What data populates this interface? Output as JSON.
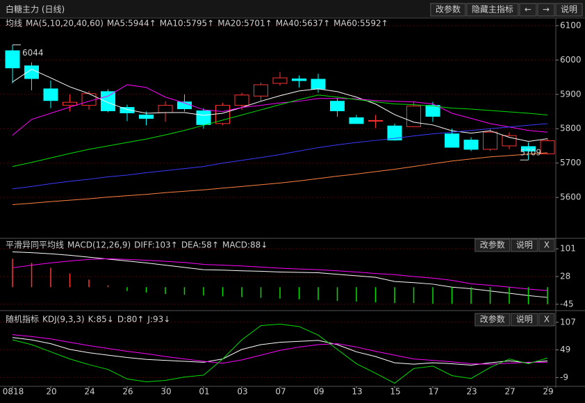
{
  "header": {
    "title": "白糖主力 (日线)",
    "buttons": [
      "改参数",
      "隐藏主指标",
      "←",
      "→",
      "说明"
    ]
  },
  "chart_data": [
    {
      "type": "candlestick",
      "label": "均线",
      "indicator": "MA(5,10,20,40,60)",
      "categories": [
        "0818",
        null,
        "20",
        null,
        "24",
        null,
        "26",
        null,
        "30",
        null,
        "01",
        null,
        "03",
        null,
        "07",
        null,
        "09",
        null,
        "13",
        null,
        "15",
        null,
        "17",
        null,
        "23",
        null,
        "27",
        null,
        "29"
      ],
      "open": [
        6027,
        5983,
        5916,
        5868,
        5868,
        5908,
        5862,
        5840,
        5847,
        5878,
        5852,
        5815,
        5868,
        5895,
        5932,
        5945,
        5944,
        5880,
        5832,
        5822,
        5808,
        5806,
        5868,
        5785,
        5767,
        5740,
        5750,
        5748,
        5727
      ],
      "high": [
        6044,
        5993,
        5940,
        5900,
        5910,
        5915,
        5870,
        5850,
        5880,
        5900,
        5860,
        5875,
        5905,
        5935,
        5965,
        5955,
        5960,
        5890,
        5840,
        5840,
        5815,
        5880,
        5878,
        5800,
        5775,
        5800,
        5790,
        5760,
        5772
      ],
      "low": [
        5932,
        5912,
        5860,
        5850,
        5855,
        5848,
        5822,
        5810,
        5820,
        5850,
        5800,
        5810,
        5855,
        5880,
        5925,
        5920,
        5905,
        5835,
        5815,
        5802,
        5765,
        5805,
        5820,
        5745,
        5735,
        5735,
        5740,
        5709,
        5725
      ],
      "close": [
        5977,
        5946,
        5882,
        5877,
        5902,
        5852,
        5846,
        5830,
        5868,
        5858,
        5812,
        5868,
        5898,
        5928,
        5948,
        5940,
        5916,
        5852,
        5815,
        5824,
        5767,
        5866,
        5836,
        5746,
        5740,
        5790,
        5780,
        5735,
        5765
      ],
      "up_color": "#ff3232",
      "down_color": "#00ffff",
      "series": [
        {
          "name": "MA5:5944↑",
          "color": "#ffffff",
          "values": [
            5936,
            5973,
            5948,
            5922,
            5902,
            5876,
            5856,
            5845,
            5847,
            5847,
            5839,
            5845,
            5862,
            5880,
            5896,
            5910,
            5916,
            5908,
            5892,
            5872,
            5841,
            5819,
            5811,
            5794,
            5787,
            5794,
            5775,
            5763,
            5771
          ]
        },
        {
          "name": "MA10:5795↑",
          "color": "#ff00ff",
          "values": [
            5781,
            5827,
            5845,
            5863,
            5880,
            5895,
            5928,
            5920,
            5892,
            5875,
            5855,
            5850,
            5862,
            5868,
            5875,
            5880,
            5888,
            5888,
            5887,
            5882,
            5880,
            5878,
            5872,
            5845,
            5830,
            5815,
            5805,
            5795,
            5790
          ]
        },
        {
          "name": "MA20:5701↑",
          "color": "#00e000",
          "values": [
            5690,
            5702,
            5715,
            5728,
            5740,
            5750,
            5760,
            5770,
            5782,
            5795,
            5810,
            5825,
            5840,
            5855,
            5870,
            5885,
            5898,
            5892,
            5885,
            5878,
            5872,
            5870,
            5866,
            5860,
            5857,
            5853,
            5849,
            5845,
            5840
          ]
        },
        {
          "name": "MA40:5637↑",
          "color": "#3a3aff",
          "values": [
            5625,
            5632,
            5640,
            5647,
            5653,
            5660,
            5665,
            5672,
            5678,
            5684,
            5690,
            5700,
            5708,
            5716,
            5725,
            5735,
            5745,
            5753,
            5760,
            5766,
            5772,
            5779,
            5785,
            5790,
            5795,
            5800,
            5805,
            5810,
            5815
          ]
        },
        {
          "name": "MA60:5592↑",
          "color": "#ff8040",
          "values": [
            5579,
            5583,
            5588,
            5592,
            5596,
            5601,
            5605,
            5609,
            5614,
            5618,
            5622,
            5627,
            5632,
            5637,
            5642,
            5648,
            5655,
            5662,
            5668,
            5675,
            5682,
            5690,
            5698,
            5706,
            5712,
            5718,
            5722,
            5726,
            5730
          ]
        }
      ],
      "ylim": [
        5483,
        6118
      ],
      "yticks": [
        5600,
        5700,
        5800,
        5900,
        6000,
        6100
      ],
      "grid": true
    },
    {
      "type": "combo",
      "label": "平滑异同平均线",
      "indicator": "MACD(12,26,9)",
      "buttons": [
        "改参数",
        "说明",
        "X"
      ],
      "series": [
        {
          "name": "DIFF:103↑",
          "color": "#ffffff",
          "values": [
            93,
            91,
            88,
            84,
            79,
            74,
            69,
            64,
            58,
            52,
            46,
            45,
            43,
            42,
            40,
            39,
            38,
            34,
            30,
            26,
            15,
            12,
            8,
            0,
            -4,
            -10,
            -16,
            -22,
            -27
          ]
        },
        {
          "name": "DEA:58↑",
          "color": "#ff00ff",
          "values": [
            51,
            58,
            64,
            69,
            73,
            75,
            73,
            71,
            68,
            65,
            60,
            58,
            56,
            53,
            50,
            48,
            46,
            43,
            40,
            36,
            33,
            28,
            24,
            18,
            9,
            5,
            0,
            -5,
            -9
          ]
        },
        {
          "name": "MACD:88↓",
          "color": "#00e000",
          "up_color": "#ff3232",
          "style": "bar",
          "values": [
            75,
            64,
            51,
            36,
            20,
            5,
            -10,
            -14,
            -18,
            -20,
            -22,
            -24,
            -26,
            -28,
            -30,
            -32,
            -34,
            -36,
            -38,
            -40,
            -42,
            -42,
            -44,
            -44,
            -44,
            -44,
            -44,
            -45,
            -45
          ]
        }
      ],
      "ylim": [
        -58,
        125
      ],
      "yticks": [
        -45,
        28,
        101
      ],
      "grid": true
    },
    {
      "type": "line",
      "label": "随机指标",
      "indicator": "KDJ(9,3,3)",
      "buttons": [
        "改参数",
        "说明",
        "X"
      ],
      "series": [
        {
          "name": "K:85↓",
          "color": "#ffffff",
          "values": [
            75,
            70,
            62,
            50,
            43,
            38,
            33,
            29,
            27,
            25,
            23,
            30,
            50,
            60,
            65,
            67,
            69,
            60,
            45,
            35,
            22,
            19,
            22,
            20,
            17,
            22,
            26,
            22,
            26
          ]
        },
        {
          "name": "D:80↑",
          "color": "#ff00ff",
          "values": [
            81,
            77,
            72,
            65,
            58,
            52,
            46,
            41,
            35,
            30,
            25,
            21,
            28,
            38,
            48,
            55,
            60,
            62,
            55,
            46,
            38,
            30,
            27,
            24,
            20,
            19,
            21,
            23,
            23
          ]
        },
        {
          "name": "J:93↓",
          "color": "#00e000",
          "values": [
            70,
            60,
            45,
            30,
            18,
            8,
            -12,
            -18,
            -15,
            -8,
            -4,
            30,
            70,
            100,
            103,
            98,
            80,
            50,
            20,
            0,
            -21,
            10,
            15,
            -5,
            -11,
            12,
            30,
            20,
            32
          ]
        }
      ],
      "ylim": [
        -26,
        130
      ],
      "yticks": [
        -9,
        49,
        107
      ],
      "grid": true
    }
  ]
}
